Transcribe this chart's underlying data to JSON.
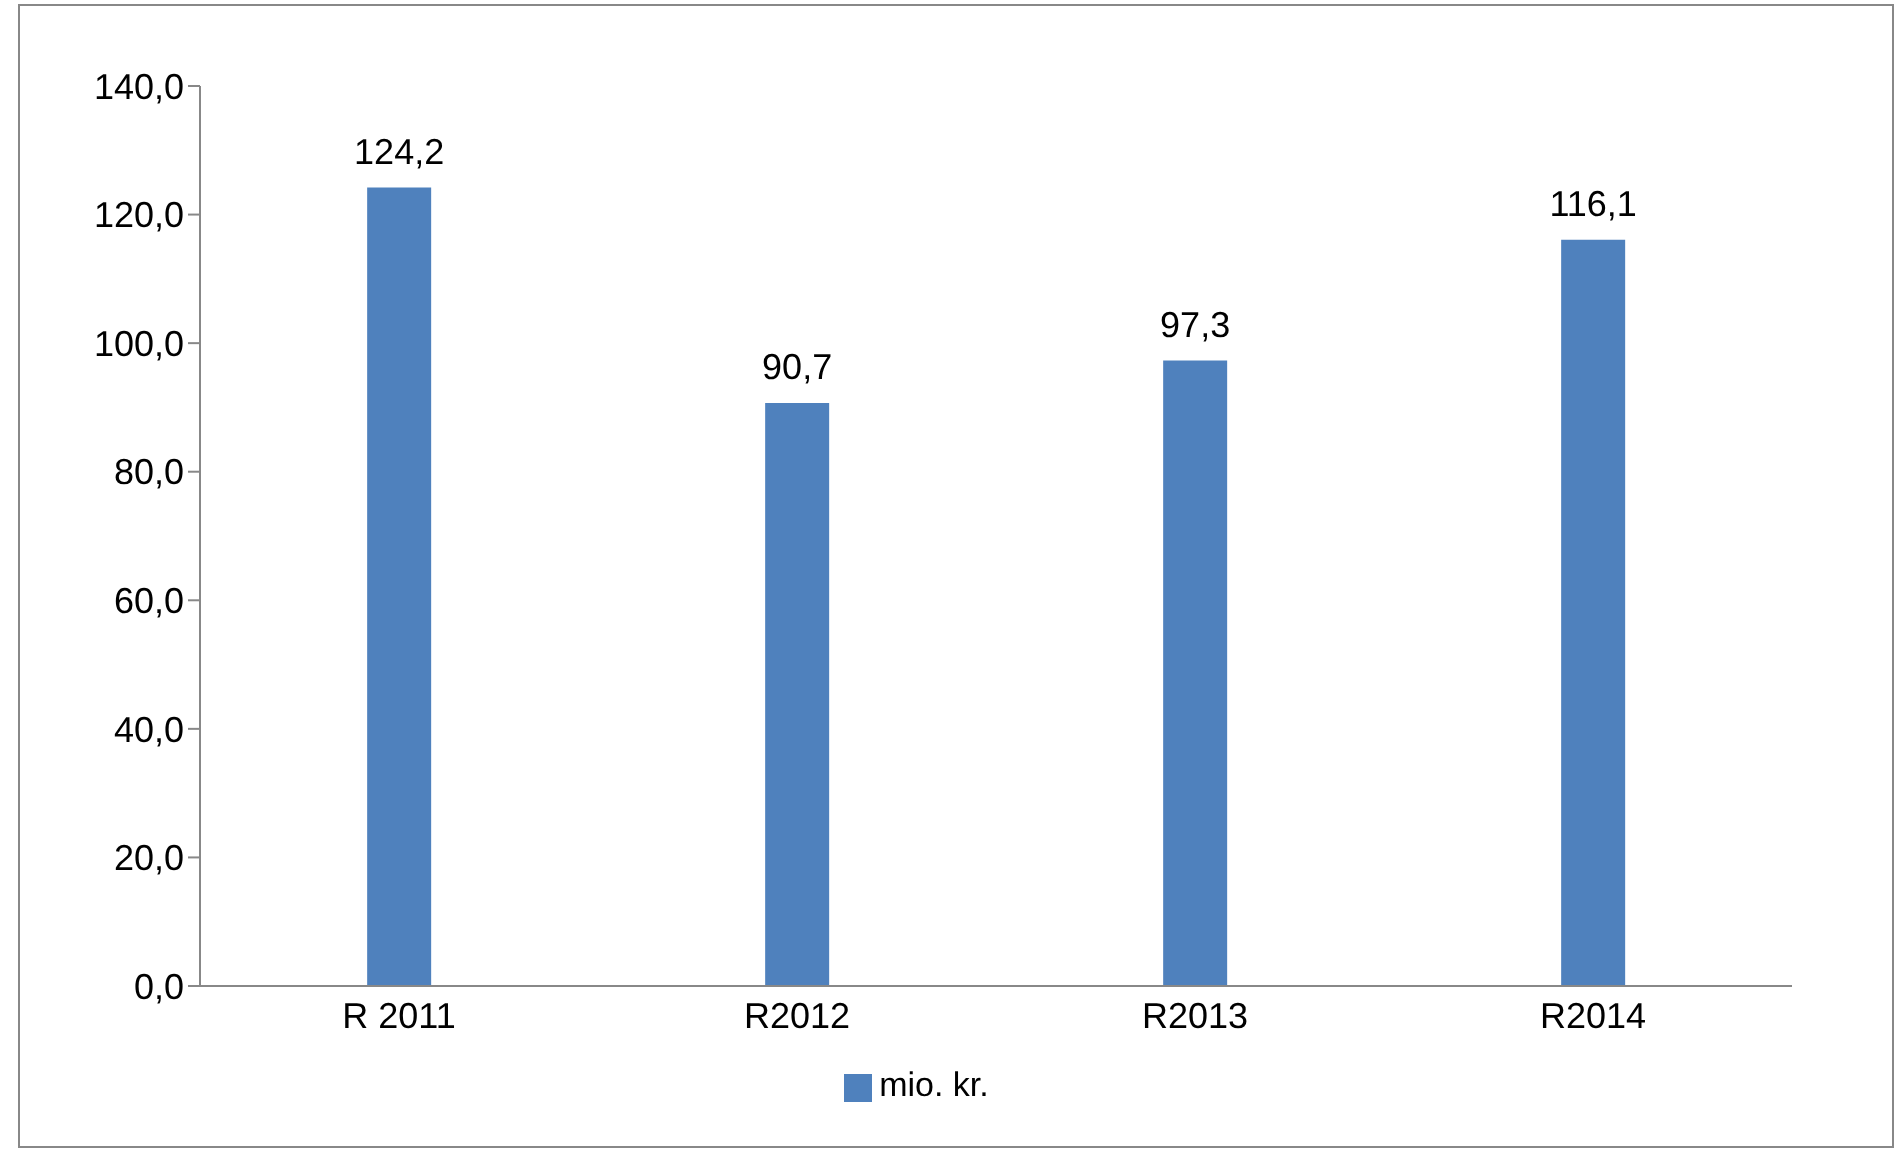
{
  "chart_data": {
    "type": "bar",
    "categories": [
      "R 2011",
      "R2012",
      "R2013",
      "R2014"
    ],
    "series": [
      {
        "name": "mio. kr.",
        "color": "#4f81bd",
        "values": [
          124.2,
          90.7,
          97.3,
          116.1
        ],
        "value_labels": [
          "124,2",
          "90,7",
          "97,3",
          "116,1"
        ]
      }
    ],
    "ylim": [
      0,
      140
    ],
    "yticks": [
      {
        "value": 0,
        "label": "0,0"
      },
      {
        "value": 20,
        "label": "20,0"
      },
      {
        "value": 40,
        "label": "40,0"
      },
      {
        "value": 60,
        "label": "60,0"
      },
      {
        "value": 80,
        "label": "80,0"
      },
      {
        "value": 100,
        "label": "100,0"
      },
      {
        "value": 120,
        "label": "120,0"
      },
      {
        "value": 140,
        "label": "140,0"
      }
    ],
    "grid": false,
    "legend": "bottom"
  }
}
